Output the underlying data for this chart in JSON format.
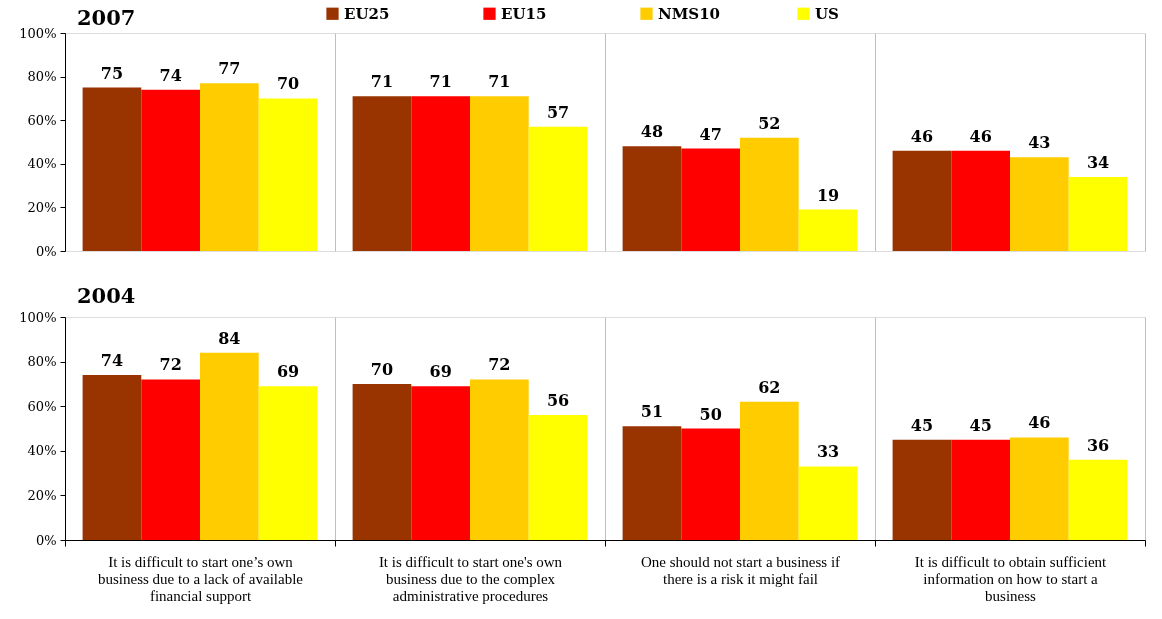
{
  "chart_data": [
    {
      "type": "bar",
      "title": "2007",
      "categories": [
        null,
        null,
        null,
        null
      ],
      "series": [
        {
          "name": "EU25",
          "color": "#993300",
          "values": [
            75,
            71,
            48,
            46
          ]
        },
        {
          "name": "EU15",
          "color": "#ff0000",
          "values": [
            74,
            71,
            47,
            46
          ]
        },
        {
          "name": "NMS10",
          "color": "#ffcc00",
          "values": [
            77,
            71,
            52,
            43
          ]
        },
        {
          "name": "US",
          "color": "#ffff00",
          "values": [
            70,
            57,
            19,
            34
          ]
        }
      ],
      "ylim": [
        0,
        100
      ],
      "yticks": [
        {
          "value": 0,
          "label": "0%"
        },
        {
          "value": 20,
          "label": "20%"
        },
        {
          "value": 40,
          "label": "40%"
        },
        {
          "value": 60,
          "label": "60%"
        },
        {
          "value": 80,
          "label": "80%"
        },
        {
          "value": 100,
          "label": "100%"
        }
      ],
      "data_labels": true,
      "grid": "x",
      "legend": "top",
      "tick_labels": "y"
    },
    {
      "type": "bar",
      "title": "2004",
      "categories": [
        "It is difficult to start one’s own business due to a lack of available financial support",
        "It is difficult to start one's own business due to the complex administrative procedures",
        "One should not start a business if there is a risk it might fail",
        "It is difficult to obtain sufficient information on how to start a business"
      ],
      "series": [
        {
          "color": "#993300",
          "values": [
            74,
            70,
            51,
            45
          ]
        },
        {
          "color": "#ff0000",
          "values": [
            72,
            69,
            50,
            45
          ]
        },
        {
          "color": "#ffcc00",
          "values": [
            84,
            72,
            62,
            46
          ]
        },
        {
          "color": "#ffff00",
          "values": [
            69,
            56,
            33,
            36
          ]
        }
      ],
      "ylim": [
        0,
        100
      ],
      "yticks": [
        {
          "value": 0,
          "label": "0%"
        },
        {
          "value": 20,
          "label": "20%"
        },
        {
          "value": 40,
          "label": "40%"
        },
        {
          "value": 60,
          "label": "60%"
        },
        {
          "value": 80,
          "label": "80%"
        },
        {
          "value": 100,
          "label": "100%"
        }
      ],
      "data_labels": true,
      "grid": "x"
    }
  ]
}
